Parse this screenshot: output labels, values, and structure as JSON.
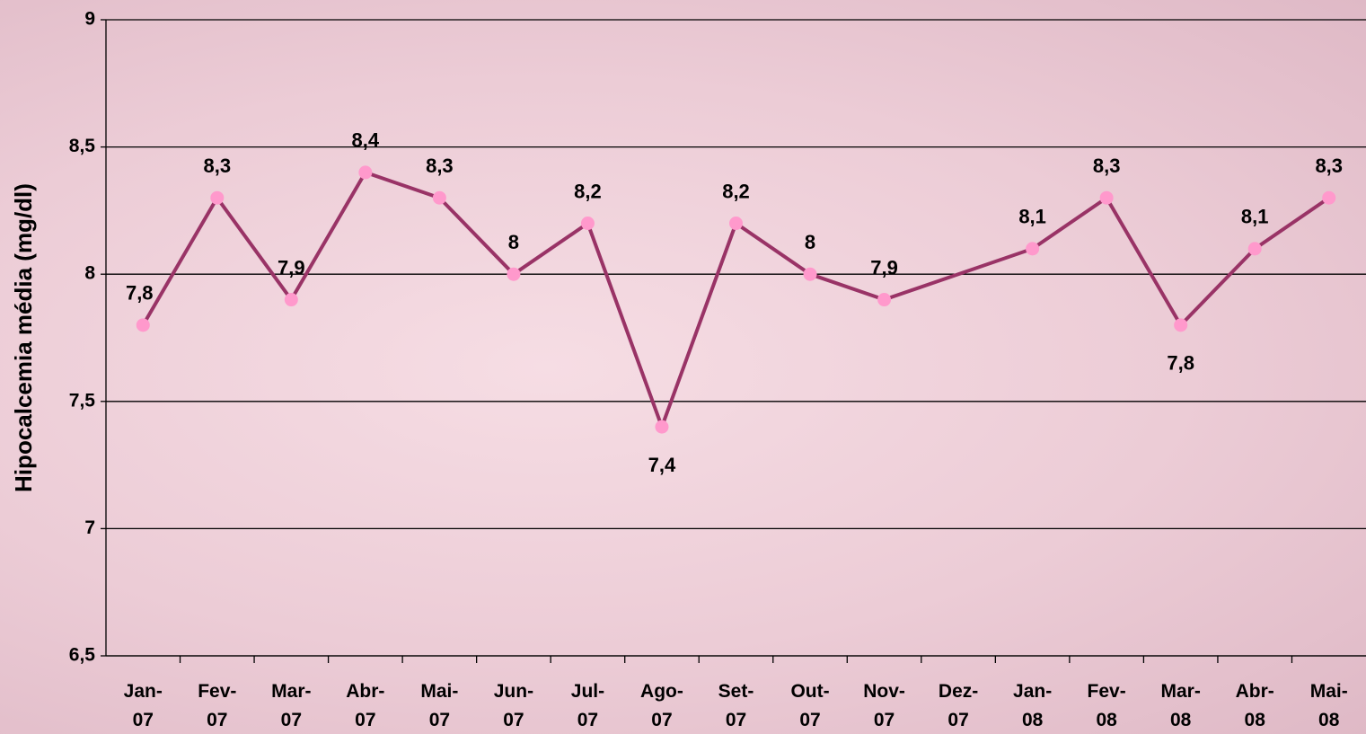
{
  "chart_data": {
    "type": "line",
    "y_label": "Hipocalcemia média (mg/dl)",
    "categories": [
      "Jan-07",
      "Fev-07",
      "Mar-07",
      "Abr-07",
      "Mai-07",
      "Jun-07",
      "Jul-07",
      "Ago-07",
      "Set-07",
      "Out-07",
      "Nov-07",
      "Dez-07",
      "Jan-08",
      "Fev-08",
      "Mar-08",
      "Abr-08",
      "Mai-08"
    ],
    "series": [
      {
        "color": "#993366",
        "marker_color": "#ff99cc",
        "values": [
          7.8,
          8.3,
          7.9,
          8.4,
          8.3,
          8,
          8.2,
          7.4,
          8.2,
          8,
          7.9,
          null,
          8.1,
          8.3,
          7.8,
          8.1,
          8.3
        ],
        "value_labels": [
          "7,8",
          "8,3",
          "7,9",
          "8,4",
          "8,3",
          "8",
          "8,2",
          "7,4",
          "8,2",
          "8",
          "7,9",
          null,
          "8,1",
          "8,3",
          "7,8",
          "8,1",
          "8,3"
        ]
      }
    ],
    "ylim": [
      6.5,
      9
    ],
    "yticks": [
      {
        "value": 6.5,
        "label": "6,5"
      },
      7,
      {
        "value": 7.5,
        "label": "7,5"
      },
      8,
      {
        "value": 8.5,
        "label": "8,5"
      },
      9
    ],
    "grid": true
  }
}
